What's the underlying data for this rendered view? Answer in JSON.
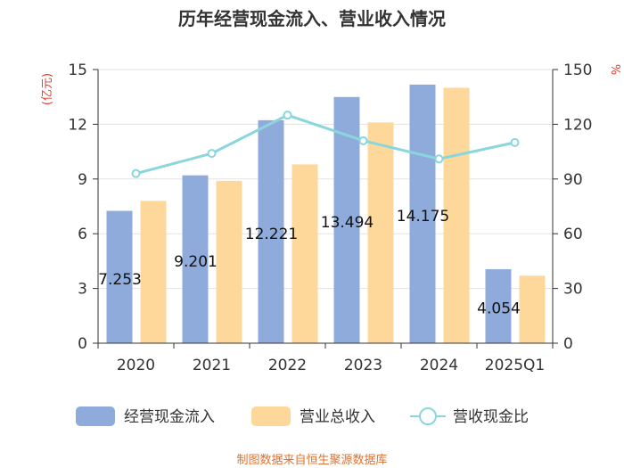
{
  "chart_data": {
    "type": "bar",
    "title": "历年经营现金流入、营业收入情况",
    "categories": [
      "2020",
      "2021",
      "2022",
      "2023",
      "2024",
      "2025Q1"
    ],
    "series": [
      {
        "name": "经营现金流入",
        "type": "bar",
        "axis": "left",
        "color": "#8fabdb",
        "values": [
          7.253,
          9.201,
          12.221,
          13.494,
          14.175,
          4.054
        ],
        "labels": [
          "7.253",
          "9.201",
          "12.221",
          "13.494",
          "14.175",
          "4.054"
        ]
      },
      {
        "name": "营业总收入",
        "type": "bar",
        "axis": "left",
        "color": "#fdd89a",
        "values": [
          7.8,
          8.9,
          9.8,
          12.1,
          14.0,
          3.7
        ]
      },
      {
        "name": "营收现金比",
        "type": "line",
        "axis": "right",
        "color": "#89d6dd",
        "values": [
          93,
          104,
          125,
          111,
          101,
          110
        ]
      }
    ],
    "left_axis": {
      "unit": "(亿元)",
      "ylim": [
        0,
        15
      ],
      "ticks": [
        "0",
        "3",
        "6",
        "9",
        "12",
        "15"
      ]
    },
    "right_axis": {
      "unit": "%",
      "ylim": [
        0,
        150
      ],
      "ticks": [
        "0",
        "30",
        "60",
        "90",
        "120",
        "150"
      ]
    },
    "legend": "bottom",
    "grid": true
  },
  "source": "制图数据来自恒生聚源数据库"
}
